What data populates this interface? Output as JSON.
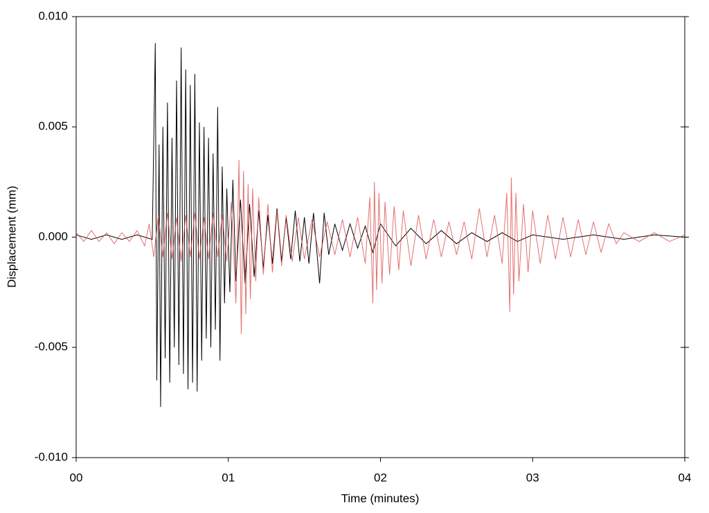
{
  "chart_data": {
    "type": "line",
    "x_label": "Time (minutes)",
    "y_label": "Displacement (mm)",
    "xlim": [
      0,
      4
    ],
    "xticks": [
      {
        "value": 0,
        "label": "00"
      },
      {
        "value": 1,
        "label": "01"
      },
      {
        "value": 2,
        "label": "02"
      },
      {
        "value": 3,
        "label": "03"
      },
      {
        "value": 4,
        "label": "04"
      }
    ],
    "ylim": [
      -0.01,
      0.01
    ],
    "yticks": [
      {
        "value": 0.01,
        "label": "0.010"
      },
      {
        "value": 0.005,
        "label": "0.005"
      },
      {
        "value": 0,
        "label": "0.000"
      },
      {
        "value": -0.005,
        "label": "-0.005"
      },
      {
        "value": -0.01,
        "label": "-0.010"
      }
    ],
    "series": [
      {
        "color": "#000000",
        "x": [
          0,
          0.1,
          0.2,
          0.3,
          0.4,
          0.5,
          0.52,
          0.53,
          0.545,
          0.555,
          0.57,
          0.585,
          0.6,
          0.615,
          0.63,
          0.645,
          0.66,
          0.675,
          0.69,
          0.705,
          0.72,
          0.735,
          0.75,
          0.765,
          0.78,
          0.795,
          0.81,
          0.825,
          0.84,
          0.855,
          0.87,
          0.885,
          0.9,
          0.915,
          0.93,
          0.945,
          0.96,
          0.975,
          0.99,
          1.01,
          1.03,
          1.05,
          1.08,
          1.11,
          1.14,
          1.17,
          1.2,
          1.23,
          1.26,
          1.29,
          1.32,
          1.35,
          1.38,
          1.41,
          1.44,
          1.47,
          1.5,
          1.53,
          1.56,
          1.6,
          1.63,
          1.66,
          1.7,
          1.75,
          1.8,
          1.85,
          1.9,
          1.95,
          2.0,
          2.1,
          2.2,
          2.3,
          2.4,
          2.5,
          2.6,
          2.7,
          2.8,
          2.9,
          3.0,
          3.2,
          3.4,
          3.6,
          3.8,
          4.0
        ],
        "values": [
          0.0001,
          -0.0001,
          0.0001,
          -0.0001,
          0.0001,
          -0.0001,
          0.0088,
          -0.0065,
          0.0042,
          -0.0077,
          0.005,
          -0.0055,
          0.0061,
          -0.0066,
          0.0045,
          -0.005,
          0.0071,
          -0.0058,
          0.0086,
          -0.0062,
          0.0076,
          -0.0069,
          0.0069,
          -0.0066,
          0.0074,
          -0.007,
          0.0052,
          -0.0056,
          0.005,
          -0.0046,
          0.0045,
          -0.005,
          0.0038,
          -0.0042,
          0.0059,
          -0.0056,
          0.0032,
          -0.003,
          0.0022,
          -0.0025,
          0.0026,
          -0.002,
          0.0017,
          -0.0021,
          0.0015,
          -0.0018,
          0.0012,
          -0.0014,
          0.001,
          -0.0012,
          0.0013,
          -0.0011,
          0.0009,
          -0.001,
          0.0012,
          -0.0011,
          0.0009,
          -0.0012,
          0.0011,
          -0.0021,
          0.0011,
          -0.0008,
          0.0006,
          -0.0006,
          0.0006,
          -0.0005,
          0.0005,
          -0.0007,
          0.0006,
          -0.0004,
          0.0004,
          -0.0003,
          0.0003,
          -0.0003,
          0.0002,
          -0.0002,
          0.0002,
          -0.0002,
          0.0001,
          -0.0001,
          0.0001,
          -0.0001,
          0.0001,
          0
        ]
      },
      {
        "color": "#de4a4a",
        "x": [
          0,
          0.05,
          0.1,
          0.15,
          0.2,
          0.25,
          0.3,
          0.35,
          0.4,
          0.45,
          0.48,
          0.51,
          0.54,
          0.57,
          0.6,
          0.63,
          0.66,
          0.69,
          0.72,
          0.75,
          0.78,
          0.81,
          0.84,
          0.87,
          0.9,
          0.93,
          0.96,
          0.99,
          1.02,
          1.05,
          1.07,
          1.085,
          1.1,
          1.115,
          1.13,
          1.145,
          1.16,
          1.18,
          1.2,
          1.23,
          1.26,
          1.29,
          1.32,
          1.35,
          1.38,
          1.42,
          1.46,
          1.5,
          1.55,
          1.6,
          1.65,
          1.7,
          1.75,
          1.8,
          1.85,
          1.9,
          1.93,
          1.95,
          1.96,
          1.975,
          1.99,
          2.01,
          2.03,
          2.06,
          2.09,
          2.12,
          2.15,
          2.2,
          2.25,
          2.3,
          2.35,
          2.4,
          2.45,
          2.5,
          2.55,
          2.6,
          2.65,
          2.7,
          2.75,
          2.8,
          2.83,
          2.85,
          2.86,
          2.875,
          2.89,
          2.91,
          2.94,
          2.97,
          3.0,
          3.05,
          3.1,
          3.15,
          3.2,
          3.25,
          3.3,
          3.35,
          3.4,
          3.45,
          3.5,
          3.55,
          3.6,
          3.7,
          3.8,
          3.9,
          4.0
        ],
        "values": [
          0.0002,
          -0.0002,
          0.0003,
          -0.0002,
          0.0002,
          -0.0003,
          0.0002,
          -0.0002,
          0.0003,
          -0.0004,
          0.0006,
          -0.0009,
          0.001,
          -0.0009,
          0.0011,
          -0.001,
          0.0009,
          -0.0011,
          0.001,
          -0.0009,
          0.0011,
          -0.001,
          0.0009,
          -0.001,
          0.0011,
          -0.0009,
          0.001,
          -0.0011,
          0.0016,
          -0.003,
          0.0035,
          -0.0044,
          0.003,
          -0.0035,
          0.0024,
          -0.0028,
          0.0022,
          -0.002,
          0.0018,
          -0.0017,
          0.0015,
          -0.0016,
          0.0012,
          -0.0013,
          0.001,
          -0.0011,
          0.0009,
          -0.001,
          0.0008,
          -0.0009,
          0.0007,
          -0.0008,
          0.0008,
          -0.0009,
          0.0009,
          -0.0012,
          0.0018,
          -0.003,
          0.0025,
          -0.0024,
          0.002,
          -0.0021,
          0.0016,
          -0.0017,
          0.0014,
          -0.0015,
          0.0012,
          -0.0013,
          0.001,
          -0.001,
          0.0008,
          -0.0009,
          0.0007,
          -0.0008,
          0.0007,
          -0.001,
          0.0013,
          -0.0009,
          0.001,
          -0.0012,
          0.002,
          -0.0034,
          0.0027,
          -0.0026,
          0.002,
          -0.002,
          0.0015,
          -0.0016,
          0.0012,
          -0.0012,
          0.001,
          -0.001,
          0.0009,
          -0.0009,
          0.0008,
          -0.0008,
          0.0007,
          -0.0007,
          0.0006,
          -0.0003,
          0.0002,
          -0.0002,
          0.0002,
          -0.0002,
          0.0001
        ]
      }
    ]
  }
}
